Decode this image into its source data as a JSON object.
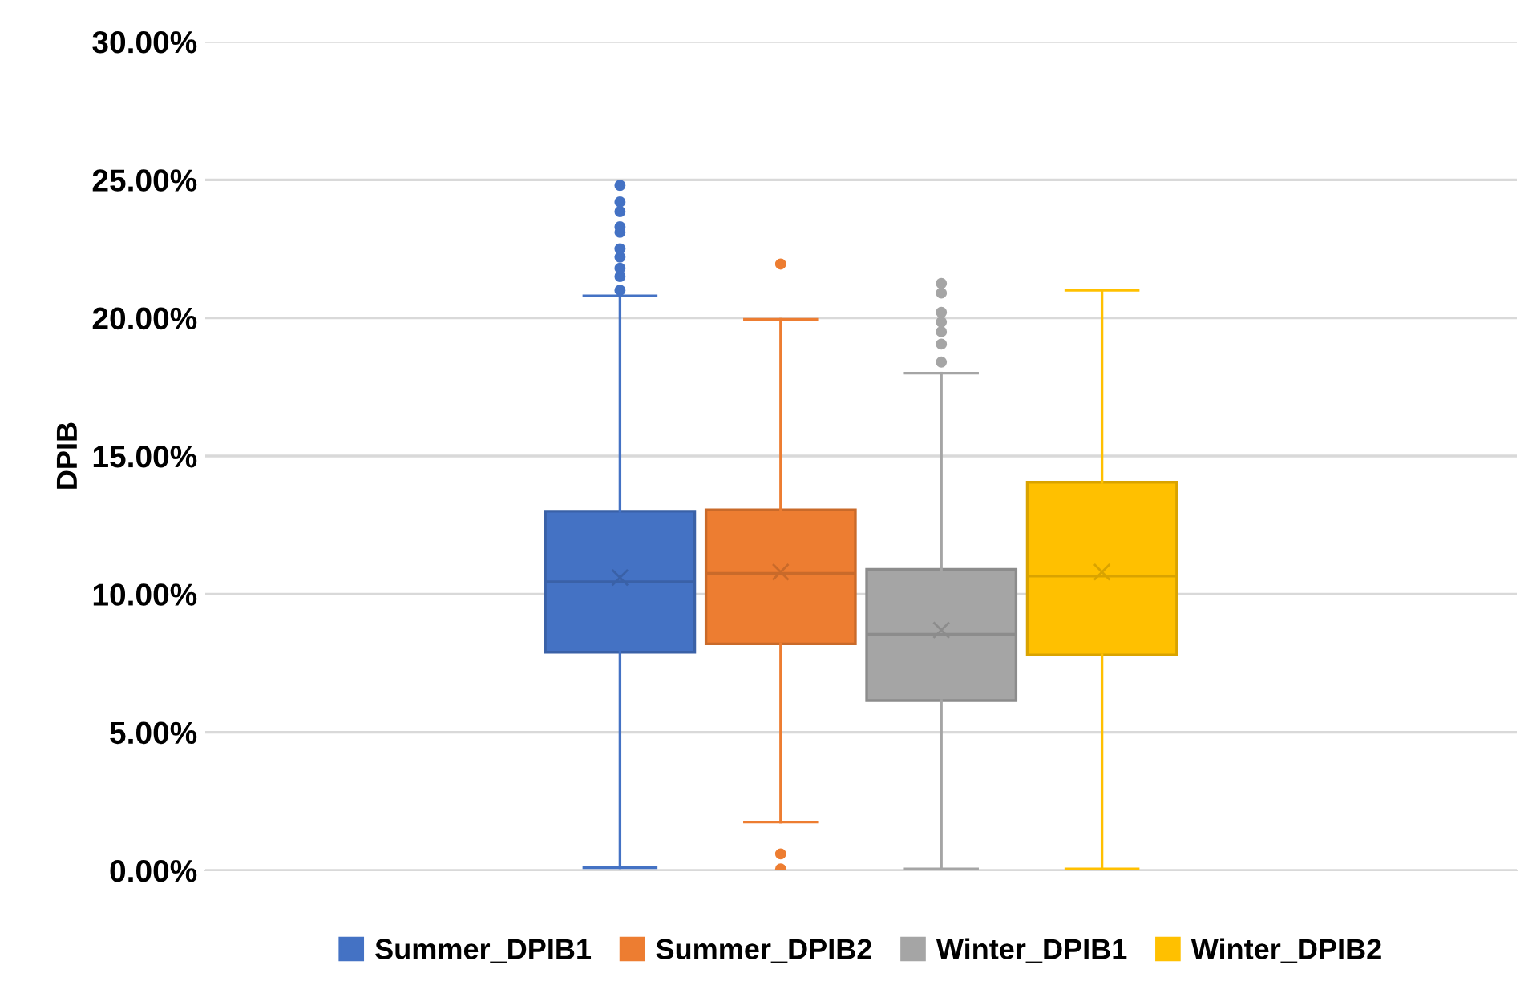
{
  "chart_data": {
    "type": "box",
    "ylabel": "DPIB",
    "categories": [
      null
    ],
    "series": [
      {
        "name": "Summer_DPIB1",
        "color": "#4472c4",
        "boxes": [
          {
            "low": 0.1,
            "q1": 7.9,
            "median": 10.45,
            "q3": 13.0,
            "high": 20.8,
            "mean": 10.6,
            "outliers": [
              21.0,
              21.5,
              21.8,
              22.2,
              22.5,
              23.1,
              23.3,
              23.85,
              24.2,
              24.8
            ]
          }
        ]
      },
      {
        "name": "Summer_DPIB2",
        "color": "#ed7d31",
        "boxes": [
          {
            "low": 1.75,
            "q1": 8.2,
            "median": 10.75,
            "q3": 13.05,
            "high": 19.95,
            "mean": 10.8,
            "outliers": [
              0.05,
              0.6,
              21.95
            ]
          }
        ]
      },
      {
        "name": "Winter_DPIB1",
        "color": "#a5a5a5",
        "boxes": [
          {
            "low": 0.05,
            "q1": 6.15,
            "median": 8.55,
            "q3": 10.9,
            "high": 18.0,
            "mean": 8.7,
            "outliers": [
              18.4,
              19.05,
              19.5,
              19.85,
              20.2,
              20.9,
              21.25
            ]
          }
        ]
      },
      {
        "name": "Winter_DPIB2",
        "color": "#ffc000",
        "boxes": [
          {
            "low": 0.05,
            "q1": 7.8,
            "median": 10.65,
            "q3": 14.05,
            "high": 21.0,
            "mean": 10.8
          }
        ]
      }
    ],
    "ylim": [
      0,
      30
    ],
    "yticks": [
      {
        "value": 0,
        "label": "0.00%"
      },
      {
        "value": 5,
        "label": "5.00%"
      },
      {
        "value": 10,
        "label": "10.00%"
      },
      {
        "value": 15,
        "label": "15.00%"
      },
      {
        "value": 20,
        "label": "20.00%"
      },
      {
        "value": 25,
        "label": "25.00%"
      },
      {
        "value": 30,
        "label": "30.00%"
      }
    ],
    "grid": "y",
    "legend": "bottom"
  }
}
